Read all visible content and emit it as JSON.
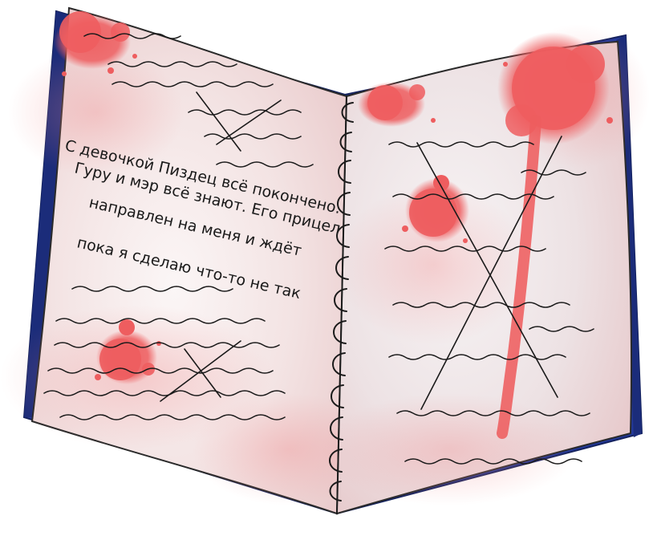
{
  "notebook": {
    "left_page": {
      "lines": [
        "С девочкой Пиздец всё покончено.",
        "Гуру и мэр всё знают. Его прицел",
        "направлен на меня и ждёт",
        "пока я сделаю что-то не так"
      ]
    }
  },
  "colors": {
    "cover": "#22389a",
    "cover_dark": "#14225e",
    "page_tint": "#f1dcdc",
    "blood": "#ee5d5f",
    "ink": "#1a1a1a"
  },
  "icons": {
    "spiral": "spiral-binding-ring-icon",
    "cross": "x-mark-icon",
    "splatter": "blood-splatter-icon"
  }
}
